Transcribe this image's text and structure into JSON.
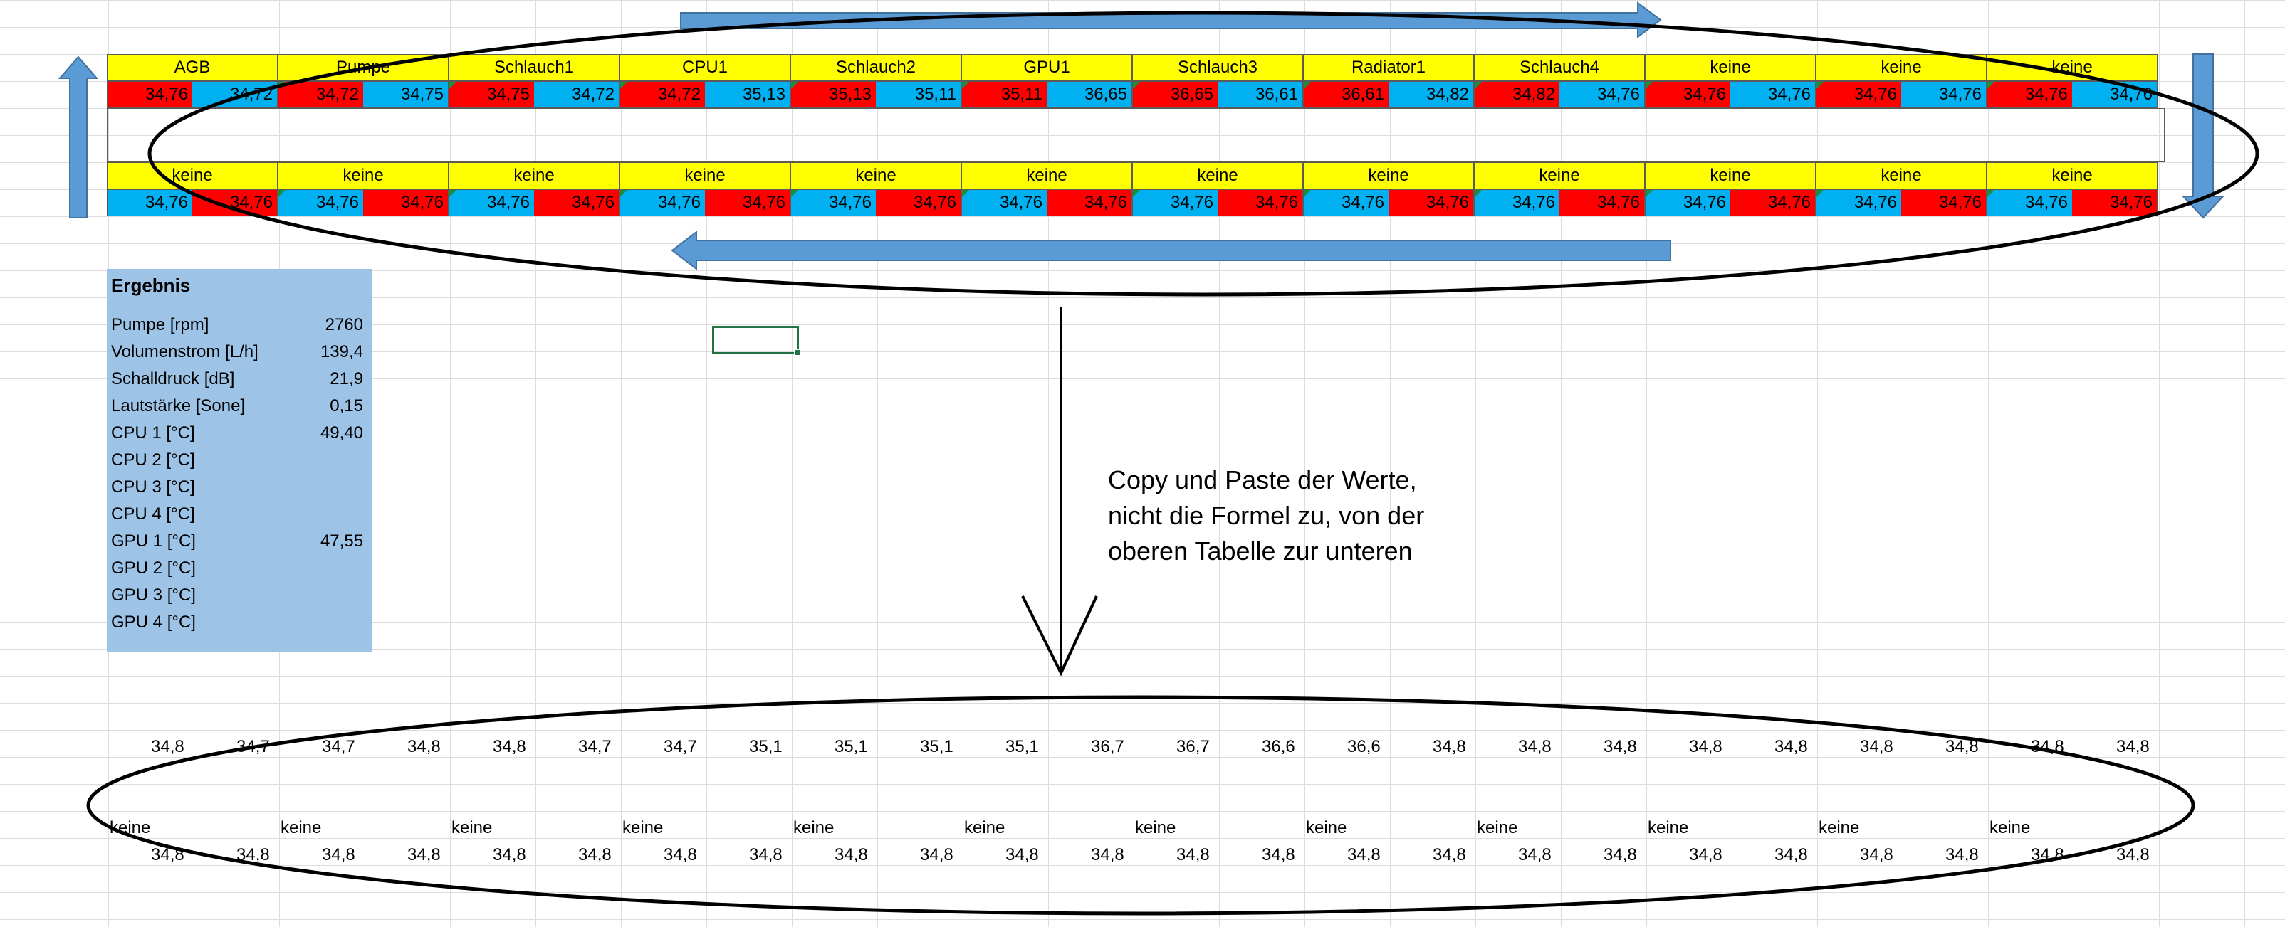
{
  "colors": {
    "header_bg": "#ffff00",
    "hot": "#ff0000",
    "cold": "#00b0f0",
    "panel_bg": "#9dc3e6",
    "arrow": "#5b9bd5",
    "selection": "#217346"
  },
  "top_table": {
    "headers": [
      "AGB",
      "Pumpe",
      "Schlauch1",
      "CPU1",
      "Schlauch2",
      "GPU1",
      "Schlauch3",
      "Radiator1",
      "Schlauch4",
      "keine",
      "keine",
      "keine"
    ],
    "values": [
      [
        "34,76",
        "34,72"
      ],
      [
        "34,72",
        "34,75"
      ],
      [
        "34,75",
        "34,72"
      ],
      [
        "34,72",
        "35,13"
      ],
      [
        "35,13",
        "35,11"
      ],
      [
        "35,11",
        "36,65"
      ],
      [
        "36,65",
        "36,61"
      ],
      [
        "36,61",
        "34,82"
      ],
      [
        "34,82",
        "34,76"
      ],
      [
        "34,76",
        "34,76"
      ],
      [
        "34,76",
        "34,76"
      ],
      [
        "34,76",
        "34,76"
      ]
    ]
  },
  "bottom_table": {
    "headers": [
      "keine",
      "keine",
      "keine",
      "keine",
      "keine",
      "keine",
      "keine",
      "keine",
      "keine",
      "keine",
      "keine",
      "keine"
    ],
    "values": [
      [
        "34,76",
        "34,76"
      ],
      [
        "34,76",
        "34,76"
      ],
      [
        "34,76",
        "34,76"
      ],
      [
        "34,76",
        "34,76"
      ],
      [
        "34,76",
        "34,76"
      ],
      [
        "34,76",
        "34,76"
      ],
      [
        "34,76",
        "34,76"
      ],
      [
        "34,76",
        "34,76"
      ],
      [
        "34,76",
        "34,76"
      ],
      [
        "34,76",
        "34,76"
      ],
      [
        "34,76",
        "34,76"
      ],
      [
        "34,76",
        "34,76"
      ]
    ]
  },
  "result": {
    "title": "Ergebnis",
    "rows": [
      {
        "label": "Pumpe [rpm]",
        "value": "2760"
      },
      {
        "label": "Volumenstrom [L/h]",
        "value": "139,4"
      },
      {
        "label": "Schalldruck [dB]",
        "value": "21,9"
      },
      {
        "label": "Lautstärke [Sone]",
        "value": "0,15"
      },
      {
        "label": "CPU 1 [°C]",
        "value": "49,40"
      },
      {
        "label": "CPU 2 [°C]",
        "value": ""
      },
      {
        "label": "CPU 3 [°C]",
        "value": ""
      },
      {
        "label": "CPU 4 [°C]",
        "value": ""
      },
      {
        "label": "GPU 1 [°C]",
        "value": "47,55"
      },
      {
        "label": "GPU 2 [°C]",
        "value": ""
      },
      {
        "label": "GPU 3 [°C]",
        "value": ""
      },
      {
        "label": "GPU 4 [°C]",
        "value": ""
      }
    ]
  },
  "note": {
    "lines": [
      "Copy und Paste der Werte,",
      "nicht die Formel zu, von der",
      "oberen Tabelle zur unteren"
    ]
  },
  "pasted": {
    "row1": [
      "34,8",
      "34,7",
      "34,7",
      "34,8",
      "34,8",
      "34,7",
      "34,7",
      "35,1",
      "35,1",
      "35,1",
      "35,1",
      "36,7",
      "36,7",
      "36,6",
      "36,6",
      "34,8",
      "34,8",
      "34,8",
      "34,8",
      "34,8",
      "34,8",
      "34,8",
      "34,8",
      "34,8"
    ],
    "row2": [
      "keine",
      "keine",
      "keine",
      "keine",
      "keine",
      "keine",
      "keine",
      "keine",
      "keine",
      "keine",
      "keine",
      "keine"
    ],
    "row3": [
      "34,8",
      "34,8",
      "34,8",
      "34,8",
      "34,8",
      "34,8",
      "34,8",
      "34,8",
      "34,8",
      "34,8",
      "34,8",
      "34,8",
      "34,8",
      "34,8",
      "34,8",
      "34,8",
      "34,8",
      "34,8",
      "34,8",
      "34,8",
      "34,8",
      "34,8",
      "34,8",
      "34,8"
    ]
  }
}
